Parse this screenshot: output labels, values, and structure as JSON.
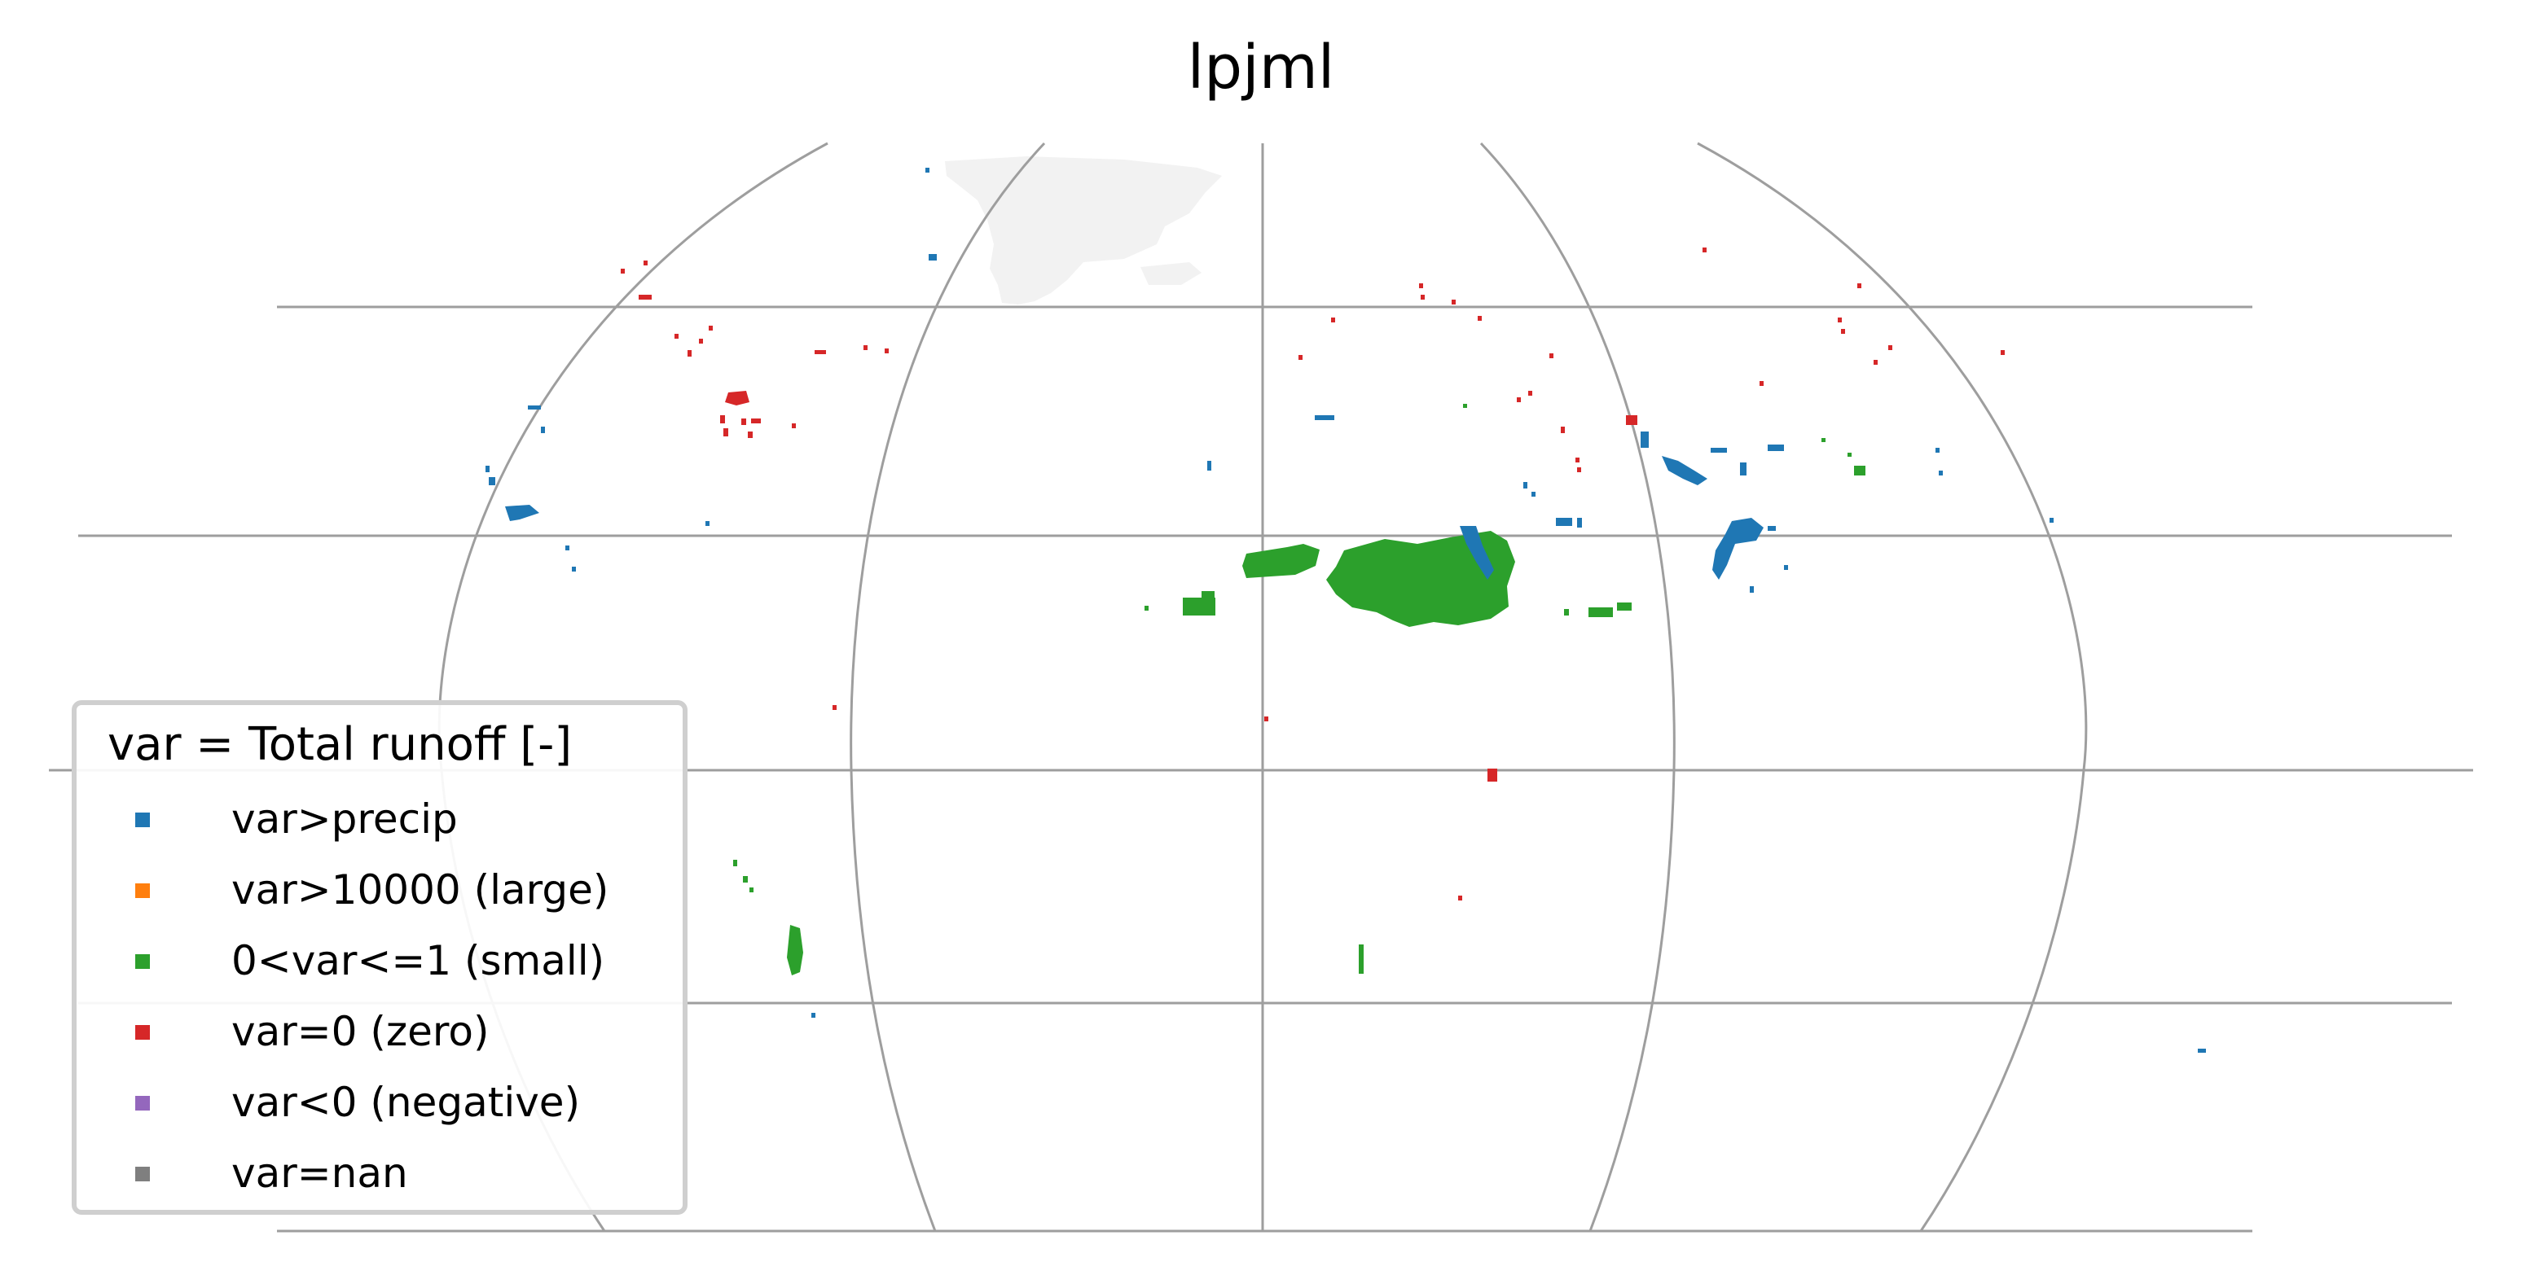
{
  "title": "lpjml",
  "legend": {
    "title": "var = Total runoff [-]",
    "items": [
      {
        "label": "var>precip",
        "color": "#1f77b4"
      },
      {
        "label": "var>10000 (large)",
        "color": "#ff7f0e"
      },
      {
        "label": "0<var<=1 (small)",
        "color": "#2ca02c"
      },
      {
        "label": "var=0 (zero)",
        "color": "#d62728"
      },
      {
        "label": "var<0 (negative)",
        "color": "#9467bd"
      },
      {
        "label": "var=nan",
        "color": "#7f7f7f"
      }
    ]
  },
  "colors": {
    "graticule": "#9e9e9e",
    "land_background": "#f2f2f2",
    "legend_border": "#cfcfcf"
  }
}
